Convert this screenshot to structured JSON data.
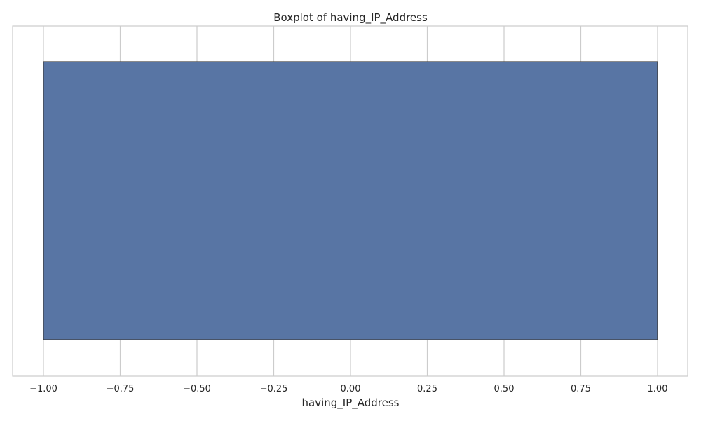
{
  "chart_data": {
    "type": "box",
    "title": "Boxplot of having_IP_Address",
    "xlabel": "having_IP_Address",
    "ylabel": "",
    "xlim": [
      -1.1,
      1.1
    ],
    "ticks": [
      -1.0,
      -0.75,
      -0.5,
      -0.25,
      0.0,
      0.25,
      0.5,
      0.75,
      1.0
    ],
    "tick_labels": [
      "−1.00",
      "−0.75",
      "−0.50",
      "−0.25",
      "0.00",
      "0.25",
      "0.50",
      "0.75",
      "1.00"
    ],
    "grid": true,
    "orientation": "horizontal",
    "box": {
      "whisker_low": -1.0,
      "q1": -1.0,
      "median": 1.0,
      "q3": 1.0,
      "whisker_high": 1.0
    },
    "colors": {
      "box_fill": "#5875a4",
      "box_edge": "#3d3d3d",
      "grid": "#cccccc",
      "frame": "#cccccc",
      "text": "#262626"
    }
  }
}
